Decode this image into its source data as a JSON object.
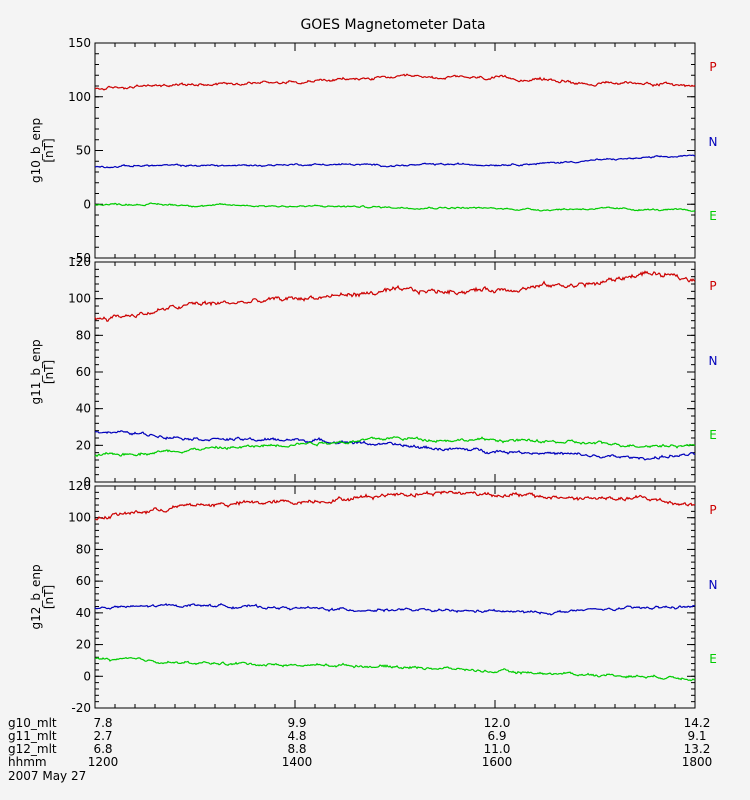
{
  "title": "GOES Magnetometer Data",
  "colors": {
    "P": "#cc0000",
    "N": "#0000bb",
    "E": "#00cc00",
    "axis": "#000000",
    "background": "#f4f4f4"
  },
  "chart_data": [
    {
      "type": "line",
      "ylabel": "g10_b_enp",
      "yunit": "[nT]",
      "ylim": [
        -50,
        150
      ],
      "yticks": [
        "-50",
        "0",
        "50",
        "100",
        "150"
      ],
      "xlim": [
        1200,
        1800
      ],
      "legend": [
        "P",
        "N",
        "E"
      ],
      "series": [
        {
          "name": "P",
          "x": [
            1200,
            1250,
            1300,
            1350,
            1400,
            1450,
            1500,
            1550,
            1600,
            1650,
            1700,
            1750,
            1800
          ],
          "y": [
            107,
            110,
            112,
            113,
            114,
            116,
            118,
            118,
            117,
            116,
            112,
            113,
            110
          ]
        },
        {
          "name": "N",
          "x": [
            1200,
            1250,
            1300,
            1350,
            1400,
            1450,
            1500,
            1550,
            1600,
            1650,
            1700,
            1750,
            1800
          ],
          "y": [
            35,
            36,
            36,
            36,
            37,
            37,
            36,
            37,
            37,
            38,
            41,
            43,
            45
          ]
        },
        {
          "name": "E",
          "x": [
            1200,
            1250,
            1300,
            1350,
            1400,
            1450,
            1500,
            1550,
            1600,
            1650,
            1700,
            1750,
            1800
          ],
          "y": [
            0,
            0,
            -1,
            -1,
            -2,
            -2,
            -3,
            -3,
            -4,
            -5,
            -4,
            -5,
            -6
          ]
        }
      ]
    },
    {
      "type": "line",
      "ylabel": "g11_b_enp",
      "yunit": "[nT]",
      "ylim": [
        0,
        120
      ],
      "yticks": [
        "0",
        "20",
        "40",
        "60",
        "80",
        "100",
        "120"
      ],
      "xlim": [
        1200,
        1800
      ],
      "legend": [
        "P",
        "N",
        "E"
      ],
      "series": [
        {
          "name": "P",
          "x": [
            1200,
            1250,
            1300,
            1350,
            1400,
            1450,
            1500,
            1550,
            1600,
            1650,
            1700,
            1750,
            1800
          ],
          "y": [
            89,
            92,
            97,
            98,
            100,
            102,
            104,
            104,
            105,
            107,
            108,
            114,
            110
          ]
        },
        {
          "name": "N",
          "x": [
            1200,
            1250,
            1300,
            1350,
            1400,
            1450,
            1500,
            1550,
            1600,
            1650,
            1700,
            1750,
            1800
          ],
          "y": [
            28,
            26,
            24,
            23,
            23,
            22,
            20,
            18,
            17,
            16,
            14,
            13,
            15
          ]
        },
        {
          "name": "E",
          "x": [
            1200,
            1250,
            1300,
            1350,
            1400,
            1450,
            1500,
            1550,
            1600,
            1650,
            1700,
            1750,
            1800
          ],
          "y": [
            14,
            16,
            18,
            19,
            21,
            22,
            24,
            23,
            23,
            22,
            21,
            20,
            20
          ]
        }
      ]
    },
    {
      "type": "line",
      "ylabel": "g12_b_enp",
      "yunit": "[nT]",
      "ylim": [
        -20,
        120
      ],
      "yticks": [
        "-20",
        "0",
        "20",
        "40",
        "60",
        "80",
        "100",
        "120"
      ],
      "xlim": [
        1200,
        1800
      ],
      "legend": [
        "P",
        "N",
        "E"
      ],
      "series": [
        {
          "name": "P",
          "x": [
            1200,
            1250,
            1300,
            1350,
            1400,
            1450,
            1500,
            1550,
            1600,
            1650,
            1700,
            1750,
            1800
          ],
          "y": [
            100,
            104,
            108,
            109,
            110,
            112,
            115,
            116,
            115,
            113,
            112,
            112,
            108
          ]
        },
        {
          "name": "N",
          "x": [
            1200,
            1250,
            1300,
            1350,
            1400,
            1450,
            1500,
            1550,
            1600,
            1650,
            1700,
            1750,
            1800
          ],
          "y": [
            43,
            44,
            45,
            44,
            43,
            42,
            42,
            41,
            41,
            40,
            42,
            43,
            44
          ]
        },
        {
          "name": "E",
          "x": [
            1200,
            1250,
            1300,
            1350,
            1400,
            1450,
            1500,
            1550,
            1600,
            1650,
            1700,
            1750,
            1800
          ],
          "y": [
            11,
            10,
            8,
            8,
            7,
            7,
            6,
            5,
            3,
            2,
            1,
            0,
            -1
          ]
        }
      ]
    }
  ],
  "xaxis": {
    "rows": [
      {
        "label": "g10_mlt",
        "values": [
          "7.8",
          "9.9",
          "12.0",
          "14.2"
        ]
      },
      {
        "label": "g11_mlt",
        "values": [
          "2.7",
          "4.8",
          "6.9",
          "9.1"
        ]
      },
      {
        "label": "g12_mlt",
        "values": [
          "6.8",
          "8.8",
          "11.0",
          "13.2"
        ]
      },
      {
        "label": "hhmm",
        "values": [
          "1200",
          "1400",
          "1600",
          "1800"
        ]
      }
    ],
    "date": "2007 May 27"
  }
}
